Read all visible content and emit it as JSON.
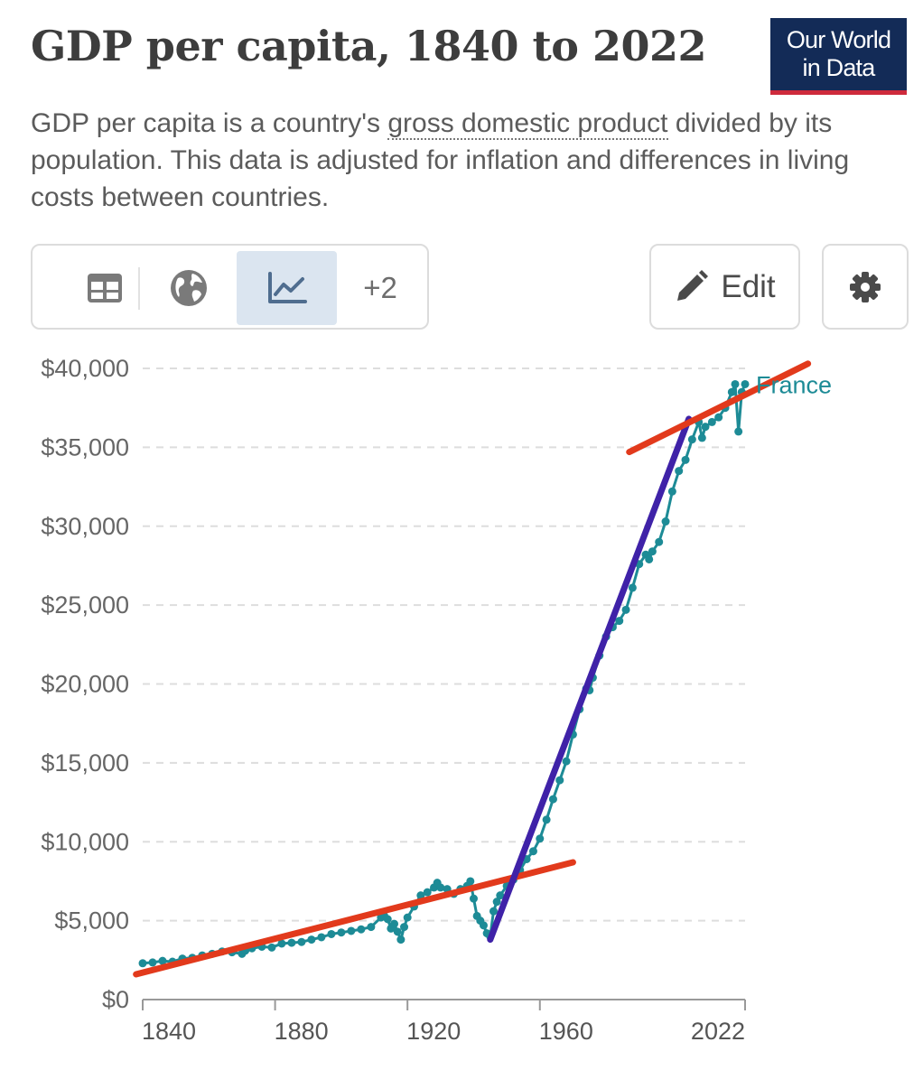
{
  "header": {
    "title": "GDP per capita, 1840 to 2022",
    "logo_line1": "Our World",
    "logo_line2": "in Data",
    "subtitle_before": "GDP per capita is a country's ",
    "subtitle_term": "gross domestic product",
    "subtitle_after": " divided by its population. This data is adjusted for inflation and differences in living costs between countries."
  },
  "toolbar": {
    "table_icon": "table-icon",
    "map_icon": "globe-icon",
    "chart_icon": "line-chart-icon",
    "more_label": "+2",
    "edit_icon": "pencil-icon",
    "edit_label": "Edit",
    "settings_icon": "gear-icon"
  },
  "colors": {
    "series": "#1d8b96",
    "trend_red": "#e23a1c",
    "trend_purple": "#3f22a8",
    "logo_bg": "#132b57",
    "logo_accent": "#ce2a3c",
    "active_tab": "#dbe5f0"
  },
  "chart_data": {
    "type": "line",
    "title": "GDP per capita, 1840 to 2022",
    "xlabel": "",
    "ylabel": "",
    "xlim": [
      1840,
      2022
    ],
    "ylim": [
      0,
      40000
    ],
    "x_ticks": [
      1840,
      1880,
      1920,
      1960,
      2022
    ],
    "x_tick_labels": [
      "1840",
      "1880",
      "1920",
      "1960",
      "2022"
    ],
    "y_ticks": [
      0,
      5000,
      10000,
      15000,
      20000,
      25000,
      30000,
      35000,
      40000
    ],
    "y_tick_labels": [
      "$0",
      "$5,000",
      "$10,000",
      "$15,000",
      "$20,000",
      "$25,000",
      "$30,000",
      "$35,000",
      "$40,000"
    ],
    "grid": "horizontal dashed",
    "series": [
      {
        "name": "France",
        "color": "#1d8b96",
        "x": [
          1840,
          1843,
          1846,
          1849,
          1852,
          1855,
          1858,
          1861,
          1864,
          1867,
          1870,
          1871,
          1873,
          1876,
          1879,
          1882,
          1885,
          1888,
          1891,
          1894,
          1897,
          1900,
          1903,
          1906,
          1909,
          1912,
          1913,
          1914,
          1915,
          1916,
          1917,
          1918,
          1919,
          1920,
          1922,
          1924,
          1926,
          1928,
          1929,
          1930,
          1932,
          1934,
          1936,
          1938,
          1939,
          1940,
          1941,
          1942,
          1943,
          1944,
          1945,
          1946,
          1947,
          1948,
          1950,
          1952,
          1954,
          1956,
          1958,
          1960,
          1962,
          1964,
          1966,
          1968,
          1970,
          1972,
          1974,
          1975,
          1976,
          1978,
          1980,
          1982,
          1984,
          1986,
          1988,
          1990,
          1992,
          1993,
          1994,
          1996,
          1998,
          2000,
          2002,
          2004,
          2006,
          2008,
          2009,
          2010,
          2012,
          2014,
          2016,
          2018,
          2019,
          2020,
          2021,
          2022
        ],
        "values": [
          2300,
          2350,
          2450,
          2400,
          2600,
          2650,
          2800,
          2900,
          3050,
          3000,
          2900,
          3100,
          3250,
          3350,
          3300,
          3550,
          3600,
          3650,
          3800,
          3950,
          4150,
          4250,
          4350,
          4450,
          4600,
          5200,
          5300,
          5100,
          4500,
          4800,
          4300,
          3800,
          4600,
          5200,
          5900,
          6600,
          6800,
          7100,
          7400,
          7100,
          7000,
          6700,
          7000,
          7200,
          7500,
          6400,
          5300,
          5000,
          4700,
          4200,
          4000,
          5600,
          6200,
          6600,
          7200,
          7600,
          8200,
          8900,
          9400,
          10200,
          11400,
          12700,
          13900,
          15100,
          16800,
          18400,
          19700,
          19600,
          20400,
          21800,
          23000,
          23600,
          24000,
          24700,
          26100,
          27600,
          28200,
          27900,
          28400,
          29000,
          30300,
          32200,
          33500,
          34200,
          35500,
          36600,
          35600,
          36300,
          36600,
          36900,
          37500,
          38500,
          39000,
          36000,
          38500,
          39000
        ]
      }
    ],
    "annotations": [
      {
        "type": "trend_line",
        "color": "red",
        "from": [
          1838,
          1600
        ],
        "to": [
          1970,
          8700
        ]
      },
      {
        "type": "trend_line",
        "color": "purple",
        "from": [
          1945,
          3800
        ],
        "to": [
          2005,
          36800
        ]
      },
      {
        "type": "trend_line",
        "color": "red",
        "from": [
          1987,
          34700
        ],
        "to": [
          2041,
          40300
        ]
      }
    ]
  }
}
